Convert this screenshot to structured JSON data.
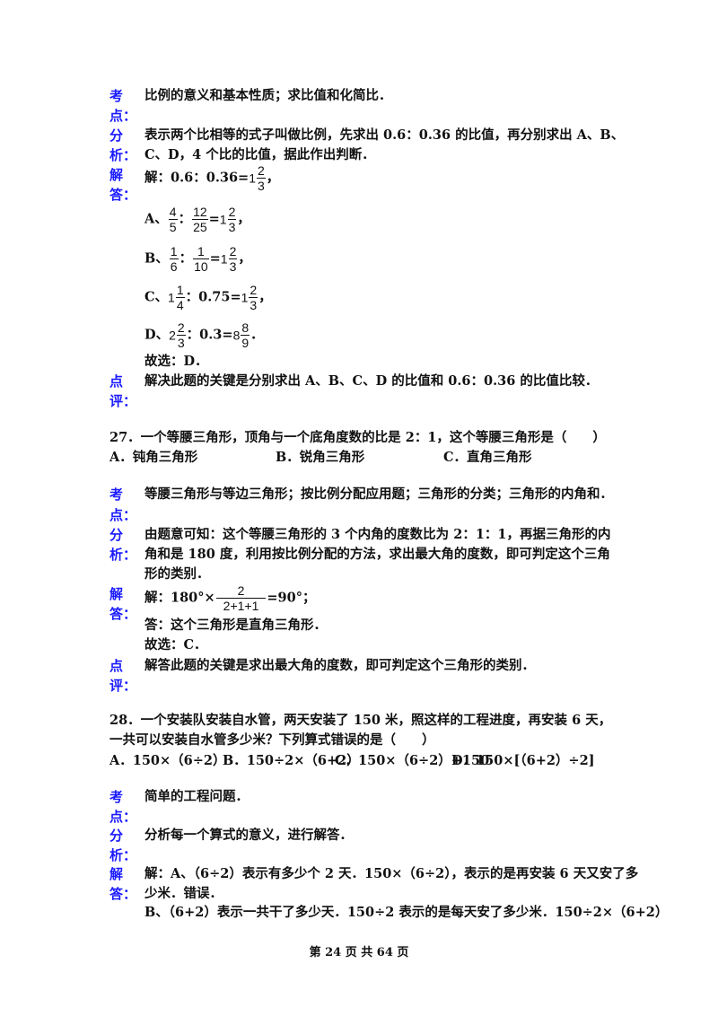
{
  "labels": {
    "kao": "考",
    "dian": "点：",
    "fen": "分",
    "xi": "析：",
    "jie": "解",
    "da": "答：",
    "dian2": "点",
    "ping": "评："
  },
  "q26": {
    "kaodian": "比例的意义和基本性质；求比值和化简比．",
    "fenxi": [
      "表示两个比相等的式子叫做比例，先求出 0.6：0.36 的比值，再分别求出 A、B、",
      "C、D，4 个比的比值，据此作出判断．"
    ],
    "jieda": {
      "intro": "解：0.6：0.36=",
      "intro_res": {
        "w": "1",
        "n": "2",
        "d": "3"
      },
      "comma": "，",
      "A": {
        "p": "A、",
        "f1": {
          "n": "4",
          "d": "5"
        },
        "sep": "：",
        "f2": {
          "n": "12",
          "d": "25"
        },
        "eq": "=",
        "r": {
          "w": "1",
          "n": "2",
          "d": "3"
        },
        "end": "，"
      },
      "B": {
        "p": "B、",
        "f1": {
          "n": "1",
          "d": "6"
        },
        "sep": "：",
        "f2": {
          "n": "1",
          "d": "10"
        },
        "eq": "=",
        "r": {
          "w": "1",
          "n": "2",
          "d": "3"
        },
        "end": "，"
      },
      "C": {
        "p": "C、",
        "f1": {
          "w": "1",
          "n": "1",
          "d": "4"
        },
        "mid": "：0.75=",
        "r": {
          "w": "1",
          "n": "2",
          "d": "3"
        },
        "end": "，"
      },
      "D": {
        "p": "D、",
        "f1": {
          "w": "2",
          "n": "2",
          "d": "3"
        },
        "mid": "：0.3=",
        "r": {
          "w": "8",
          "n": "8",
          "d": "9"
        },
        "end": "．"
      },
      "answer": "故选：D．"
    },
    "dianping": "解决此题的关键是分别求出 A、B、C、D 的比值和 0.6：0.36 的比值比较．"
  },
  "q27": {
    "question": "27．一个等腰三角形，顶角与一个底角度数的比是 2：1，这个等腰三角形是（　　）",
    "options": [
      "A．钝角三角形",
      "B．锐角三角形",
      "C．直角三角形"
    ],
    "kaodian": "等腰三角形与等边三角形；按比例分配应用题；三角形的分类；三角形的内角和．",
    "fenxi": [
      "由题意可知：这个等腰三角形的 3 个内角的度数比为 2：1：1，再据三角形的内",
      "角和是 180 度，利用按比例分配的方法，求出最大角的度数，即可判定这个三角",
      "形的类别．"
    ],
    "jieda": {
      "pre": "解：180°×",
      "n": "2",
      "d": "2+1+1",
      "post": "=90°；",
      "line2": "答：这个三角形是直角三角形．",
      "answer": "故选：C．"
    },
    "dianping": "解答此题的关键是求出最大角的度数，即可判定这个三角形的类别．"
  },
  "q28": {
    "question": [
      "28．一个安装队安装自水管，两天安装了 150 米，照这样的工程进度，再安装 6 天，",
      "一共可以安装自水管多少米？下列算式错误的是（　　）"
    ],
    "options": [
      "A．150×（6÷2）",
      "B．150÷2×（6+2）",
      "C．150×（6÷2）+150",
      "D．150×[（6+2）÷2]"
    ],
    "kaodian": "简单的工程问题．",
    "fenxi": "分析每一个算式的意义，进行解答．",
    "jieda": [
      "解：A、（6÷2）表示有多少个 2 天．150×（6÷2），表示的是再安装 6 天又安了多",
      "少米．错误．",
      "B、（6+2）表示一共干了多少天．150÷2 表示的是每天安了多少米．150÷2×（6+2）"
    ]
  },
  "footer": "第 24 页 共 64 页",
  "colors": {
    "label": "#1a1aff",
    "text": "#111111"
  }
}
